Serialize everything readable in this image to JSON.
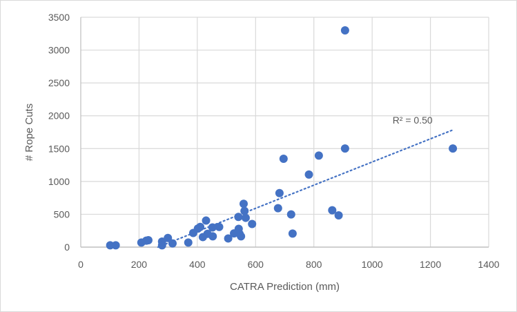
{
  "chart_data": {
    "type": "scatter",
    "title": "",
    "xlabel": "CATRA Prediction (mm)",
    "ylabel": "# Rope Cuts",
    "xlim": [
      0,
      1400
    ],
    "ylim": [
      0,
      3500
    ],
    "xticks": [
      0,
      200,
      400,
      600,
      800,
      1000,
      1200,
      1400
    ],
    "yticks": [
      0,
      500,
      1000,
      1500,
      2000,
      2500,
      3000,
      3500
    ],
    "xtick_labels": [
      "0",
      "200",
      "400",
      "600",
      "800",
      "1000",
      "1200",
      "1400"
    ],
    "ytick_labels": [
      "0",
      "500",
      "1000",
      "1500",
      "2000",
      "2500",
      "3000",
      "3500"
    ],
    "grid": true,
    "legend": "none",
    "series": [
      {
        "name": "Rope Cuts",
        "color": "#4472c4",
        "points": [
          [
            101,
            28
          ],
          [
            120,
            28
          ],
          [
            208,
            70
          ],
          [
            225,
            98
          ],
          [
            232,
            105
          ],
          [
            279,
            84
          ],
          [
            279,
            28
          ],
          [
            299,
            139
          ],
          [
            315,
            56
          ],
          [
            369,
            70
          ],
          [
            386,
            216
          ],
          [
            402,
            282
          ],
          [
            410,
            307
          ],
          [
            430,
            404
          ],
          [
            419,
            153
          ],
          [
            435,
            202
          ],
          [
            452,
            300
          ],
          [
            453,
            164
          ],
          [
            475,
            307
          ],
          [
            506,
            132
          ],
          [
            526,
            209
          ],
          [
            541,
            460
          ],
          [
            542,
            279
          ],
          [
            540,
            223
          ],
          [
            545,
            202
          ],
          [
            550,
            164
          ],
          [
            559,
            659
          ],
          [
            562,
            551
          ],
          [
            566,
            446
          ],
          [
            588,
            352
          ],
          [
            677,
            593
          ],
          [
            682,
            823
          ],
          [
            696,
            1345
          ],
          [
            722,
            498
          ],
          [
            727,
            206
          ],
          [
            783,
            1105
          ],
          [
            817,
            1394
          ],
          [
            863,
            561
          ],
          [
            885,
            484
          ],
          [
            907,
            1502
          ],
          [
            907,
            3300
          ],
          [
            1277,
            1502
          ]
        ]
      }
    ],
    "trendline": {
      "type": "linear",
      "style": "dotted",
      "color": "#4472c4",
      "x_range": [
        265,
        1275
      ],
      "slope": 1.763,
      "intercept": -467,
      "label": "R² = 0.50"
    }
  }
}
